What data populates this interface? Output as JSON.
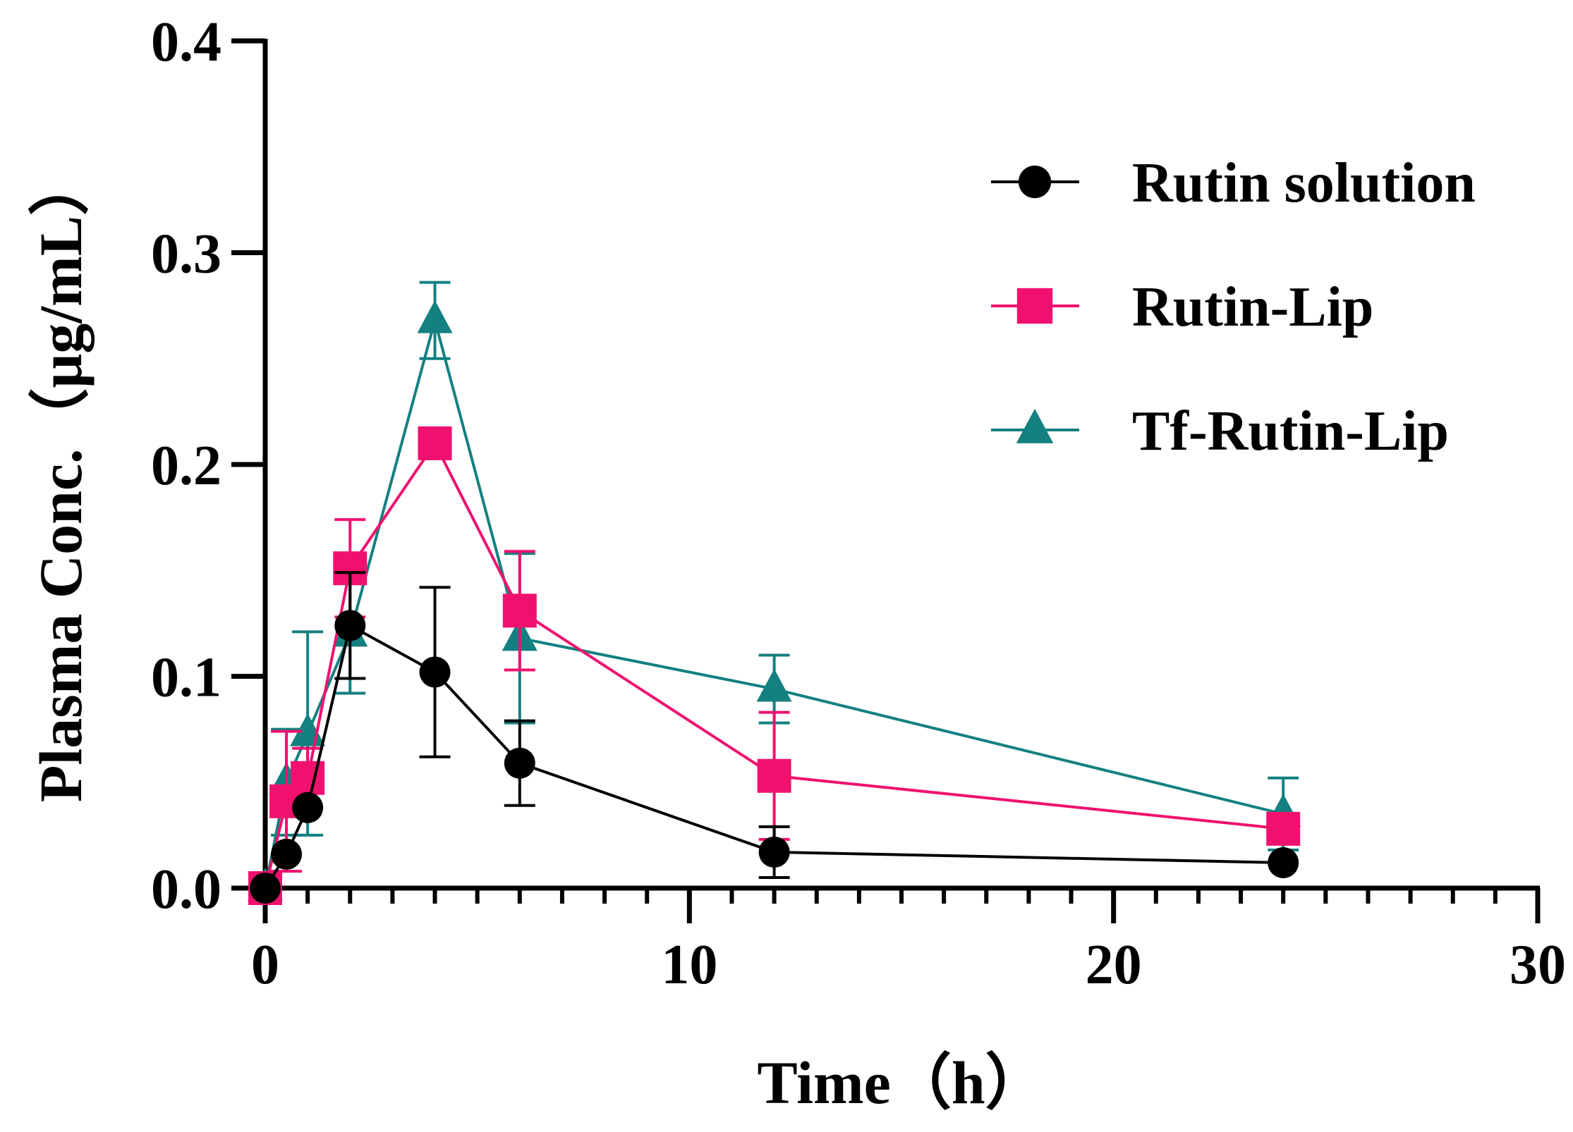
{
  "chart_data": {
    "type": "line",
    "xlabel": "Time（h）",
    "ylabel": "Plasma Conc.（μg/mL）",
    "xlim": [
      0,
      30
    ],
    "ylim": [
      0,
      0.4
    ],
    "x_ticks": [
      0,
      10,
      20,
      30
    ],
    "x_tick_labels": [
      "0",
      "10",
      "20",
      "30"
    ],
    "y_ticks": [
      0,
      0.1,
      0.2,
      0.3,
      0.4
    ],
    "y_tick_labels": [
      "0.0",
      "0.1",
      "0.2",
      "0.3",
      "0.4"
    ],
    "grid": false,
    "legend_position": "top-right",
    "series": [
      {
        "name": "Rutin solution",
        "color": "#000000",
        "marker": "circle",
        "x": [
          0,
          0.5,
          1,
          2,
          4,
          6,
          12,
          24
        ],
        "y": [
          0,
          0.016,
          0.038,
          0.124,
          0.102,
          0.059,
          0.017,
          0.012
        ],
        "err": [
          0,
          0,
          0,
          0.025,
          0.04,
          0.02,
          0.012,
          0
        ]
      },
      {
        "name": "Rutin-Lip",
        "color": "#F0116F",
        "marker": "square",
        "x": [
          0,
          0.5,
          1,
          2,
          4,
          6,
          12,
          24
        ],
        "y": [
          0,
          0.041,
          0.052,
          0.151,
          0.21,
          0.131,
          0.053,
          0.028
        ],
        "err": [
          0,
          0.033,
          0.014,
          0.023,
          0,
          0.028,
          0.03,
          0
        ]
      },
      {
        "name": "Tf-Rutin-Lip",
        "color": "#148080",
        "marker": "triangle",
        "x": [
          0,
          0.5,
          1,
          2,
          4,
          6,
          12,
          24
        ],
        "y": [
          0,
          0.05,
          0.073,
          0.12,
          0.268,
          0.118,
          0.094,
          0.035
        ],
        "err": [
          0,
          0.025,
          0.048,
          0.028,
          0.018,
          0.04,
          0.016,
          0.017
        ]
      }
    ]
  }
}
